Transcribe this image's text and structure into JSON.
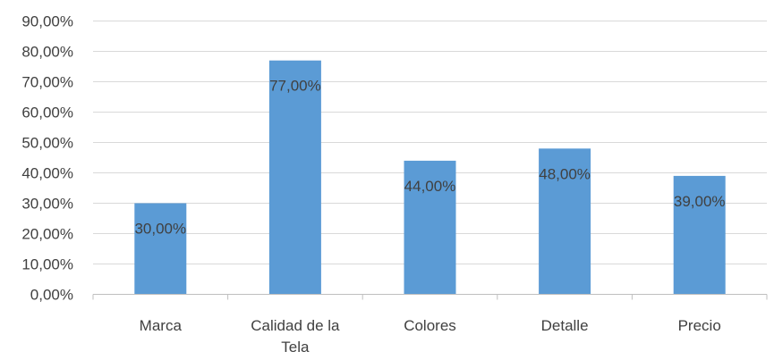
{
  "chart_data": {
    "type": "bar",
    "categories": [
      "Marca",
      "Calidad de la Tela",
      "Colores",
      "Detalle",
      "Precio"
    ],
    "category_lines": [
      [
        "Marca"
      ],
      [
        "Calidad de la",
        "Tela"
      ],
      [
        "Colores"
      ],
      [
        "Detalle"
      ],
      [
        "Precio"
      ]
    ],
    "values": [
      30,
      77,
      44,
      48,
      39
    ],
    "value_labels": [
      "30,00%",
      "77,00%",
      "44,00%",
      "48,00%",
      "39,00%"
    ],
    "y_ticks": [
      "0,00%",
      "10,00%",
      "20,00%",
      "30,00%",
      "40,00%",
      "50,00%",
      "60,00%",
      "70,00%",
      "80,00%",
      "90,00%"
    ],
    "ylim": [
      0,
      90
    ],
    "grid": true,
    "bar_color": "#5B9BD5",
    "grid_color": "#D9D9D9",
    "axis_color": "#BFBFBF",
    "text_color": "#404040"
  }
}
